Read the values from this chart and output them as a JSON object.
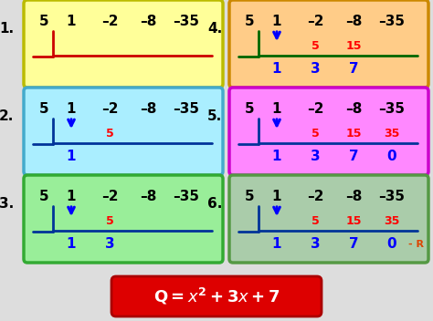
{
  "boxes": [
    {
      "number": "1.",
      "bg_color": "#FFFF99",
      "border_color": "#BBBB00",
      "col": 0,
      "row": 0,
      "divisor": "5",
      "top_row": [
        "1",
        "–2",
        "–8",
        "–35"
      ],
      "mid_row": [
        "",
        "",
        "",
        ""
      ],
      "bot_row": [
        "",
        "",
        "",
        ""
      ],
      "line_color": "#CC0000",
      "show_arrow": false,
      "show_hline": true,
      "show_vline": true,
      "bot_extra": null
    },
    {
      "number": "2.",
      "bg_color": "#AAEEFF",
      "border_color": "#44AACC",
      "col": 0,
      "row": 1,
      "divisor": "5",
      "top_row": [
        "1",
        "–2",
        "–8",
        "–35"
      ],
      "mid_row": [
        "",
        "5",
        "",
        ""
      ],
      "bot_row": [
        "1",
        "",
        "",
        ""
      ],
      "line_color": "#003399",
      "show_arrow": true,
      "show_hline": true,
      "show_vline": true,
      "bot_extra": null
    },
    {
      "number": "3.",
      "bg_color": "#99EE99",
      "border_color": "#33AA33",
      "col": 0,
      "row": 2,
      "divisor": "5",
      "top_row": [
        "1",
        "–2",
        "–8",
        "–35"
      ],
      "mid_row": [
        "",
        "5",
        "",
        ""
      ],
      "bot_row": [
        "1",
        "3",
        "",
        ""
      ],
      "line_color": "#003399",
      "show_arrow": true,
      "show_hline": true,
      "show_vline": true,
      "bot_extra": null
    },
    {
      "number": "4.",
      "bg_color": "#FFCC88",
      "border_color": "#CC8800",
      "col": 1,
      "row": 0,
      "divisor": "5",
      "top_row": [
        "1",
        "–2",
        "–8",
        "–35"
      ],
      "mid_row": [
        "",
        "5",
        "15",
        ""
      ],
      "bot_row": [
        "1",
        "3",
        "7",
        ""
      ],
      "line_color": "#006600",
      "show_arrow": true,
      "show_hline": true,
      "show_vline": true,
      "bot_extra": null
    },
    {
      "number": "5.",
      "bg_color": "#FF88FF",
      "border_color": "#CC00CC",
      "col": 1,
      "row": 1,
      "divisor": "5",
      "top_row": [
        "1",
        "–2",
        "–8",
        "–35"
      ],
      "mid_row": [
        "",
        "5",
        "15",
        "35"
      ],
      "bot_row": [
        "1",
        "3",
        "7",
        "0"
      ],
      "line_color": "#003399",
      "show_arrow": true,
      "show_hline": true,
      "show_vline": true,
      "bot_extra": null
    },
    {
      "number": "6.",
      "bg_color": "#AACCAA",
      "border_color": "#559944",
      "col": 1,
      "row": 2,
      "divisor": "5",
      "top_row": [
        "1",
        "–2",
        "–8",
        "–35"
      ],
      "mid_row": [
        "",
        "5",
        "15",
        "35"
      ],
      "bot_row": [
        "1",
        "3",
        "7",
        "0"
      ],
      "line_color": "#003399",
      "show_arrow": true,
      "show_hline": true,
      "show_vline": true,
      "bot_extra": "- R"
    }
  ],
  "formula_bg": "#DD0000",
  "formula_text_color": "white",
  "bg_color": "#DDDDDD"
}
